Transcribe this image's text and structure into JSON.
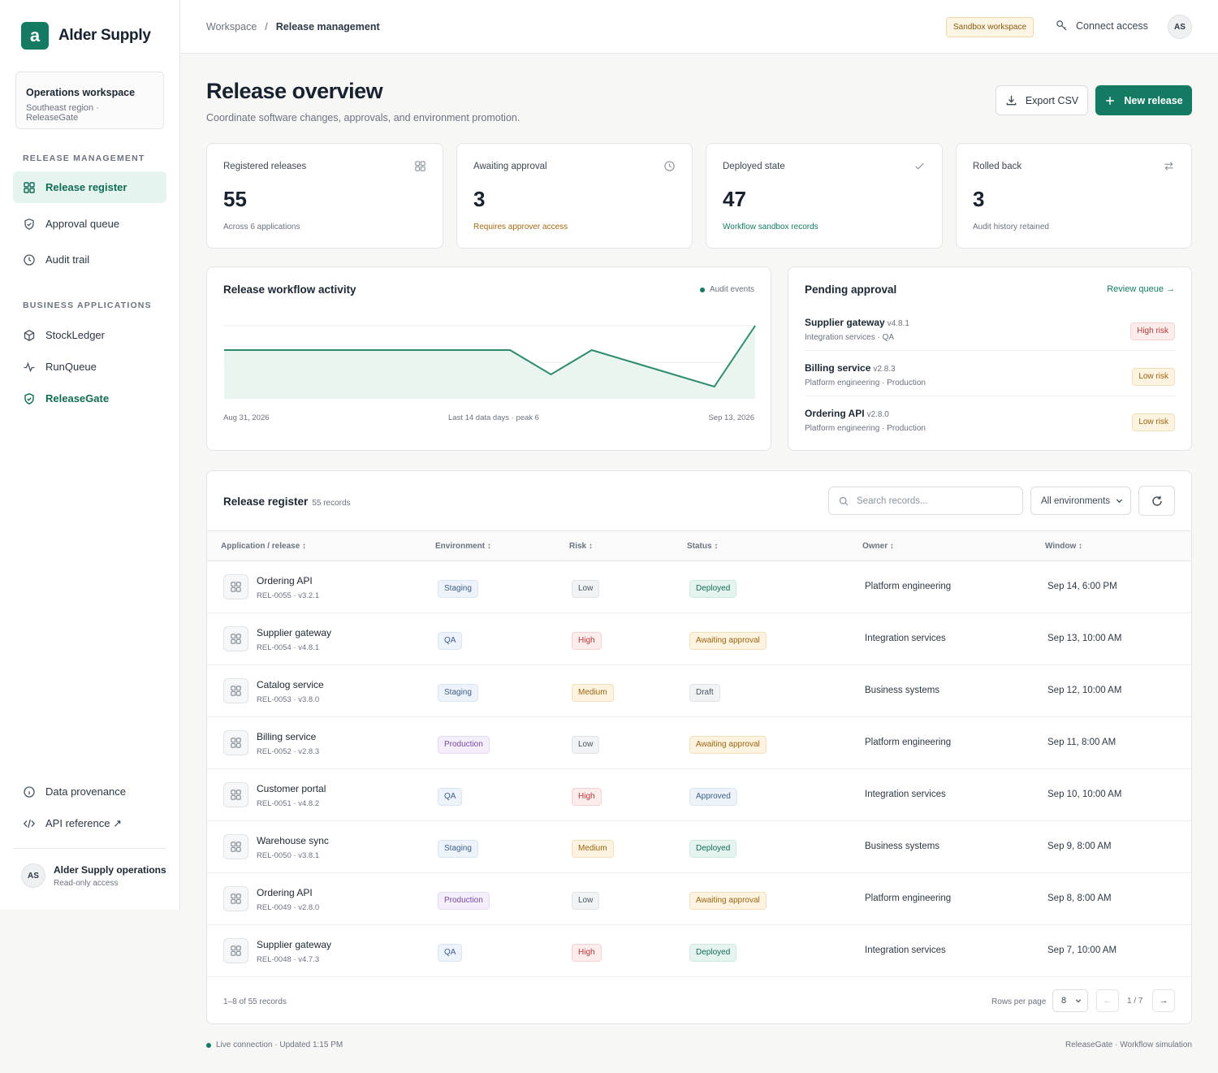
{
  "brand": {
    "logo_letter": "a",
    "name": "Alder Supply"
  },
  "workspace": {
    "title": "Operations workspace",
    "subtitle": "Southeast region · ReleaseGate"
  },
  "sidebar": {
    "section_release": "RELEASE MANAGEMENT",
    "release_items": [
      {
        "label": "Release register",
        "icon": "grid-icon",
        "active": true
      },
      {
        "label": "Approval queue",
        "icon": "shield-check-icon"
      },
      {
        "label": "Audit trail",
        "icon": "clock-icon"
      }
    ],
    "section_apps": "BUSINESS APPLICATIONS",
    "app_items": [
      {
        "label": "StockLedger",
        "icon": "box-icon"
      },
      {
        "label": "RunQueue",
        "icon": "pulse-icon"
      },
      {
        "label": "ReleaseGate",
        "icon": "shield-check-icon"
      }
    ],
    "footer_items": [
      {
        "label": "Data provenance",
        "icon": "info-icon"
      },
      {
        "label": "API reference ↗",
        "icon": "code-icon"
      }
    ],
    "user": {
      "initials": "AS",
      "name": "Alder Supply operations",
      "role": "Read-only access"
    }
  },
  "topbar": {
    "crumb_root": "Workspace",
    "crumb_sep": "/",
    "crumb_current": "Release management",
    "sandbox_badge": "Sandbox workspace",
    "connect_label": "Connect access",
    "avatar": "AS"
  },
  "page": {
    "title": "Release overview",
    "subtitle": "Coordinate software changes, approvals, and environment promotion.",
    "export_label": "Export CSV",
    "new_label": "New release"
  },
  "stats": [
    {
      "label": "Registered releases",
      "value": "55",
      "note": "Across 6 applications",
      "icon": "grid-icon",
      "tone": "muted"
    },
    {
      "label": "Awaiting approval",
      "value": "3",
      "note": "Requires approver access",
      "icon": "clock-icon",
      "tone": "amber"
    },
    {
      "label": "Deployed state",
      "value": "47",
      "note": "Workflow sandbox records",
      "icon": "check-icon",
      "tone": "green"
    },
    {
      "label": "Rolled back",
      "value": "3",
      "note": "Audit history retained",
      "icon": "swap-icon",
      "tone": "muted"
    }
  ],
  "activity": {
    "title": "Release workflow activity",
    "legend": "Audit events",
    "x_start": "Aug 31, 2026",
    "x_mid": "Last 14 data days · peak 6",
    "x_end": "Sep 13, 2026"
  },
  "chart_data": {
    "type": "area",
    "x": [
      "Aug 31",
      "Sep 1",
      "Sep 2",
      "Sep 3",
      "Sep 4",
      "Sep 5",
      "Sep 6",
      "Sep 7",
      "Sep 8",
      "Sep 9",
      "Sep 10",
      "Sep 11",
      "Sep 12",
      "Sep 13"
    ],
    "series": [
      {
        "name": "Audit events",
        "values": [
          4,
          4,
          4,
          4,
          4,
          4,
          4,
          4,
          2,
          4,
          3,
          2,
          1,
          6
        ]
      }
    ],
    "ylim": [
      0,
      6
    ],
    "grid": true,
    "legend": "top-right"
  },
  "pending": {
    "title": "Pending approval",
    "link": "Review queue →",
    "items": [
      {
        "name": "Supplier gateway",
        "version": "v4.8.1",
        "meta": "Integration services · QA",
        "risk": "High risk",
        "tone": "high"
      },
      {
        "name": "Billing service",
        "version": "v2.8.3",
        "meta": "Platform engineering · Production",
        "risk": "Low risk",
        "tone": "low"
      },
      {
        "name": "Ordering API",
        "version": "v2.8.0",
        "meta": "Platform engineering · Production",
        "risk": "Low risk",
        "tone": "low"
      }
    ]
  },
  "register": {
    "title": "Release register",
    "count": "55 records",
    "search_placeholder": "Search records...",
    "env_filter": "All environments",
    "columns": [
      "Application / release ↕",
      "Environment ↕",
      "Risk ↕",
      "Status ↕",
      "Owner ↕",
      "Window ↕"
    ],
    "rows": [
      {
        "app": "Ordering API",
        "meta": "REL-0055 · v3.2.1",
        "env": "Staging",
        "risk": "Low",
        "status": "Deployed",
        "owner": "Platform engineering",
        "window": "Sep 14, 6:00 PM"
      },
      {
        "app": "Supplier gateway",
        "meta": "REL-0054 · v4.8.1",
        "env": "QA",
        "risk": "High",
        "status": "Awaiting approval",
        "owner": "Integration services",
        "window": "Sep 13, 10:00 AM"
      },
      {
        "app": "Catalog service",
        "meta": "REL-0053 · v3.8.0",
        "env": "Staging",
        "risk": "Medium",
        "status": "Draft",
        "owner": "Business systems",
        "window": "Sep 12, 10:00 AM"
      },
      {
        "app": "Billing service",
        "meta": "REL-0052 · v2.8.3",
        "env": "Production",
        "risk": "Low",
        "status": "Awaiting approval",
        "owner": "Platform engineering",
        "window": "Sep 11, 8:00 AM"
      },
      {
        "app": "Customer portal",
        "meta": "REL-0051 · v4.8.2",
        "env": "QA",
        "risk": "High",
        "status": "Approved",
        "owner": "Integration services",
        "window": "Sep 10, 10:00 AM"
      },
      {
        "app": "Warehouse sync",
        "meta": "REL-0050 · v3.8.1",
        "env": "Staging",
        "risk": "Medium",
        "status": "Deployed",
        "owner": "Business systems",
        "window": "Sep 9, 8:00 AM"
      },
      {
        "app": "Ordering API",
        "meta": "REL-0049 · v2.8.0",
        "env": "Production",
        "risk": "Low",
        "status": "Awaiting approval",
        "owner": "Platform engineering",
        "window": "Sep 8, 8:00 AM"
      },
      {
        "app": "Supplier gateway",
        "meta": "REL-0048 · v4.7.3",
        "env": "QA",
        "risk": "High",
        "status": "Deployed",
        "owner": "Integration services",
        "window": "Sep 7, 10:00 AM"
      }
    ],
    "range_label": "1–8 of 55 records",
    "rows_per_page_label": "Rows per page",
    "rows_per_page": "8",
    "prev": "←",
    "page_label": "1 / 7",
    "next": "→"
  },
  "footer": {
    "status": "Live connection · Updated 1:15 PM",
    "right": "ReleaseGate · Workflow simulation"
  },
  "colors": {
    "accent": "#147a62",
    "accent_soft": "#e6f4ef",
    "amber": "#9a6510",
    "danger": "#b33a3a"
  }
}
